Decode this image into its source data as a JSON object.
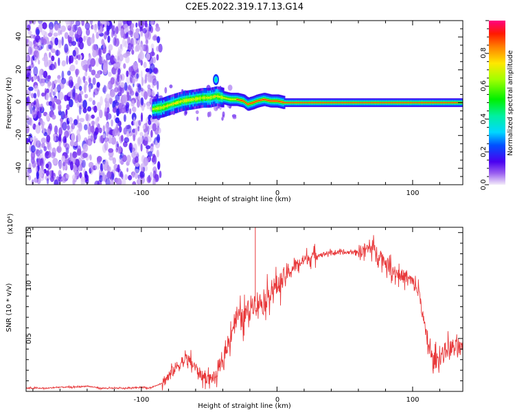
{
  "title": "C2E5.2022.319.17.13.G14",
  "colors": {
    "snr_line": "#e8383a",
    "axis": "#000000"
  },
  "chart_data": [
    {
      "type": "heatmap",
      "xlabel": "Height of straight line (km)",
      "ylabel": "Frequency (Hz)",
      "xlim": [
        -185,
        137
      ],
      "ylim": [
        -50,
        50
      ],
      "x_ticks": [
        -100,
        0,
        100
      ],
      "x_tick_labels": [
        "-100",
        "0",
        "100"
      ],
      "y_ticks": [
        -40,
        -20,
        0,
        20,
        40
      ],
      "y_tick_labels": [
        "-40",
        "-20",
        "0",
        "20",
        "40"
      ],
      "grid": false,
      "colorbar": {
        "label": "Normalized spectral amplitude",
        "range": [
          0,
          1
        ],
        "ticks": [
          0.0,
          0.2,
          0.4,
          0.6,
          0.8
        ],
        "tick_labels": [
          "0.0",
          "0.2",
          "0.4",
          "0.6",
          "0.8"
        ],
        "colormap": "rainbow-to-magenta"
      },
      "ridge": {
        "x": [
          -92,
          -85,
          -78,
          -70,
          -62,
          -55,
          -50,
          -45,
          -40,
          -35,
          -30,
          -25,
          -22,
          -18,
          -15,
          -10,
          -5,
          0,
          5,
          20,
          60,
          100,
          137
        ],
        "y": [
          -4,
          -3,
          -1,
          1,
          2,
          3,
          3,
          4,
          3,
          2,
          2,
          1,
          -1,
          0,
          1,
          2,
          1,
          1,
          0,
          0,
          0,
          0,
          0
        ]
      }
    },
    {
      "type": "line",
      "xlabel": "Height of straight line (km)",
      "ylabel": "SNR (10 * v/v)",
      "y_scale_label": "(x10⁴)",
      "xlim": [
        -185,
        137
      ],
      "ylim": [
        0,
        1.55
      ],
      "x_ticks": [
        -100,
        0,
        100
      ],
      "x_tick_labels": [
        "-100",
        "0",
        "100"
      ],
      "y_ticks": [
        0.5,
        1.0,
        1.5
      ],
      "y_tick_labels": [
        "0.5",
        "1.0",
        "1.5"
      ],
      "grid": false,
      "series": [
        {
          "x": [
            -185,
            -170,
            -160,
            -150,
            -140,
            -130,
            -120,
            -110,
            -100,
            -95,
            -90,
            -85,
            -80,
            -75,
            -70,
            -65,
            -60,
            -55,
            -50,
            -45,
            -40,
            -35,
            -30,
            -25,
            -20,
            -15,
            -10,
            -5,
            0,
            5,
            10,
            15,
            20,
            25,
            30,
            40,
            50,
            60,
            65,
            70,
            75,
            80,
            85,
            90,
            95,
            100,
            105,
            110,
            115,
            120,
            125,
            130,
            137
          ],
          "y": [
            0.03,
            0.03,
            0.04,
            0.04,
            0.05,
            0.03,
            0.03,
            0.03,
            0.04,
            0.03,
            0.05,
            0.08,
            0.14,
            0.22,
            0.28,
            0.3,
            0.22,
            0.14,
            0.12,
            0.14,
            0.28,
            0.5,
            0.72,
            0.68,
            0.8,
            0.86,
            0.82,
            0.95,
            1.0,
            1.06,
            1.14,
            1.2,
            1.24,
            1.27,
            1.29,
            1.31,
            1.31,
            1.32,
            1.34,
            1.36,
            1.3,
            1.22,
            1.15,
            1.1,
            1.08,
            1.03,
            0.92,
            0.52,
            0.28,
            0.32,
            0.4,
            0.42,
            0.38
          ]
        }
      ],
      "spikes": [
        {
          "x": -16,
          "y": 1.55
        }
      ]
    }
  ]
}
